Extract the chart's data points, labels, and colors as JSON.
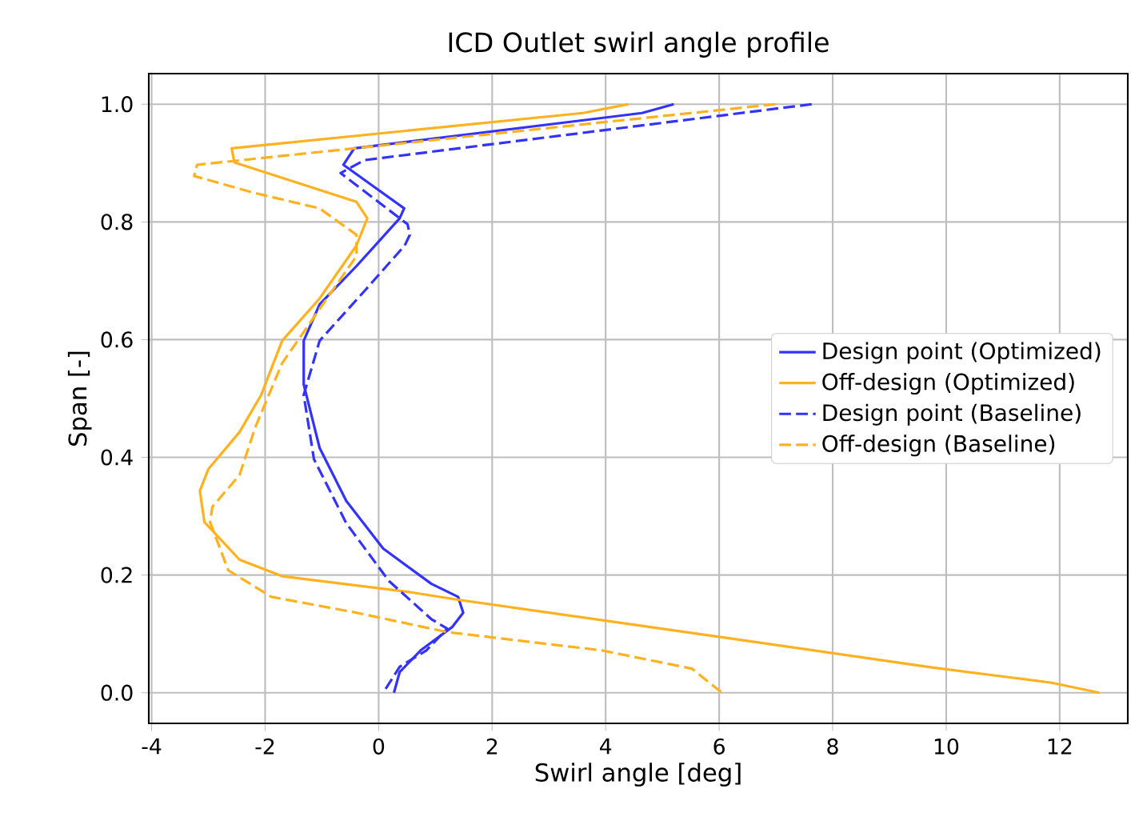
{
  "chart_data": {
    "type": "line",
    "title": "ICD Outlet swirl angle profile",
    "xlabel": "Swirl angle [deg]",
    "ylabel": "Span [-]",
    "xlim": [
      -4.05,
      13.2
    ],
    "ylim": [
      -0.052,
      1.052
    ],
    "xticks": [
      -4,
      -2,
      0,
      2,
      4,
      6,
      8,
      10,
      12
    ],
    "yticks": [
      {
        "value": 0,
        "label": "0.0"
      },
      {
        "value": 0.2,
        "label": "0.2"
      },
      {
        "value": 0.4,
        "label": "0.4"
      },
      {
        "value": 0.6,
        "label": "0.6"
      },
      {
        "value": 0.8,
        "label": "0.8"
      },
      {
        "value": 1.0,
        "label": "1.0"
      }
    ],
    "grid": true,
    "legend": "right",
    "series": [
      {
        "name": "Design point (Optimized)",
        "color": "#3333ff",
        "line_style": "solid",
        "x": [
          5.2,
          4.64,
          -0.43,
          -0.62,
          0.45,
          0.37,
          -0.39,
          -1.04,
          -1.32,
          -1.32,
          -1.04,
          -0.57,
          0.08,
          0.93,
          1.4,
          1.49,
          1.3,
          0.74,
          0.37,
          0.27
        ],
        "values": [
          1.0,
          0.985,
          0.925,
          0.897,
          0.823,
          0.806,
          0.725,
          0.66,
          0.598,
          0.524,
          0.416,
          0.326,
          0.245,
          0.185,
          0.163,
          0.136,
          0.112,
          0.072,
          0.035,
          0.0
        ]
      },
      {
        "name": "Off-design (Optimized)",
        "color": "#ffb11f",
        "line_style": "solid",
        "x": [
          4.4,
          3.6,
          -2.59,
          -2.54,
          -0.39,
          -0.2,
          -0.39,
          -1.04,
          -1.7,
          -2.07,
          -2.45,
          -3.0,
          -3.15,
          -3.07,
          -2.45,
          -1.7,
          0.55,
          1.4,
          6.0,
          9.75,
          11.86,
          12.7
        ],
        "values": [
          1.0,
          0.985,
          0.925,
          0.901,
          0.834,
          0.806,
          0.76,
          0.67,
          0.598,
          0.506,
          0.443,
          0.38,
          0.343,
          0.29,
          0.226,
          0.198,
          0.171,
          0.158,
          0.095,
          0.043,
          0.017,
          0.0
        ]
      },
      {
        "name": "Design point (Baseline)",
        "color": "#3333ff",
        "line_style": "dashed",
        "x": [
          7.63,
          -0.25,
          -0.67,
          0.51,
          0.55,
          0.46,
          -0.2,
          -1.04,
          -1.32,
          -1.14,
          -0.57,
          0.18,
          0.93,
          1.21,
          0.84,
          0.37,
          0.08
        ],
        "values": [
          1.0,
          0.905,
          0.883,
          0.796,
          0.778,
          0.76,
          0.688,
          0.598,
          0.506,
          0.397,
          0.288,
          0.19,
          0.125,
          0.109,
          0.072,
          0.044,
          0.0
        ]
      },
      {
        "name": "Off-design (Baseline)",
        "color": "#ffb11f",
        "line_style": "dashed",
        "x": [
          6.99,
          -3.2,
          -3.25,
          -2.26,
          -1.04,
          -0.39,
          -0.39,
          -1.04,
          -1.7,
          -2.17,
          -2.45,
          -2.93,
          -2.97,
          -2.65,
          -1.89,
          -0.39,
          1.21,
          3.93,
          5.52,
          6.05
        ],
        "values": [
          1.0,
          0.897,
          0.878,
          0.851,
          0.823,
          0.778,
          0.742,
          0.652,
          0.56,
          0.452,
          0.37,
          0.316,
          0.29,
          0.208,
          0.163,
          0.136,
          0.103,
          0.072,
          0.041,
          0.0
        ]
      }
    ]
  }
}
